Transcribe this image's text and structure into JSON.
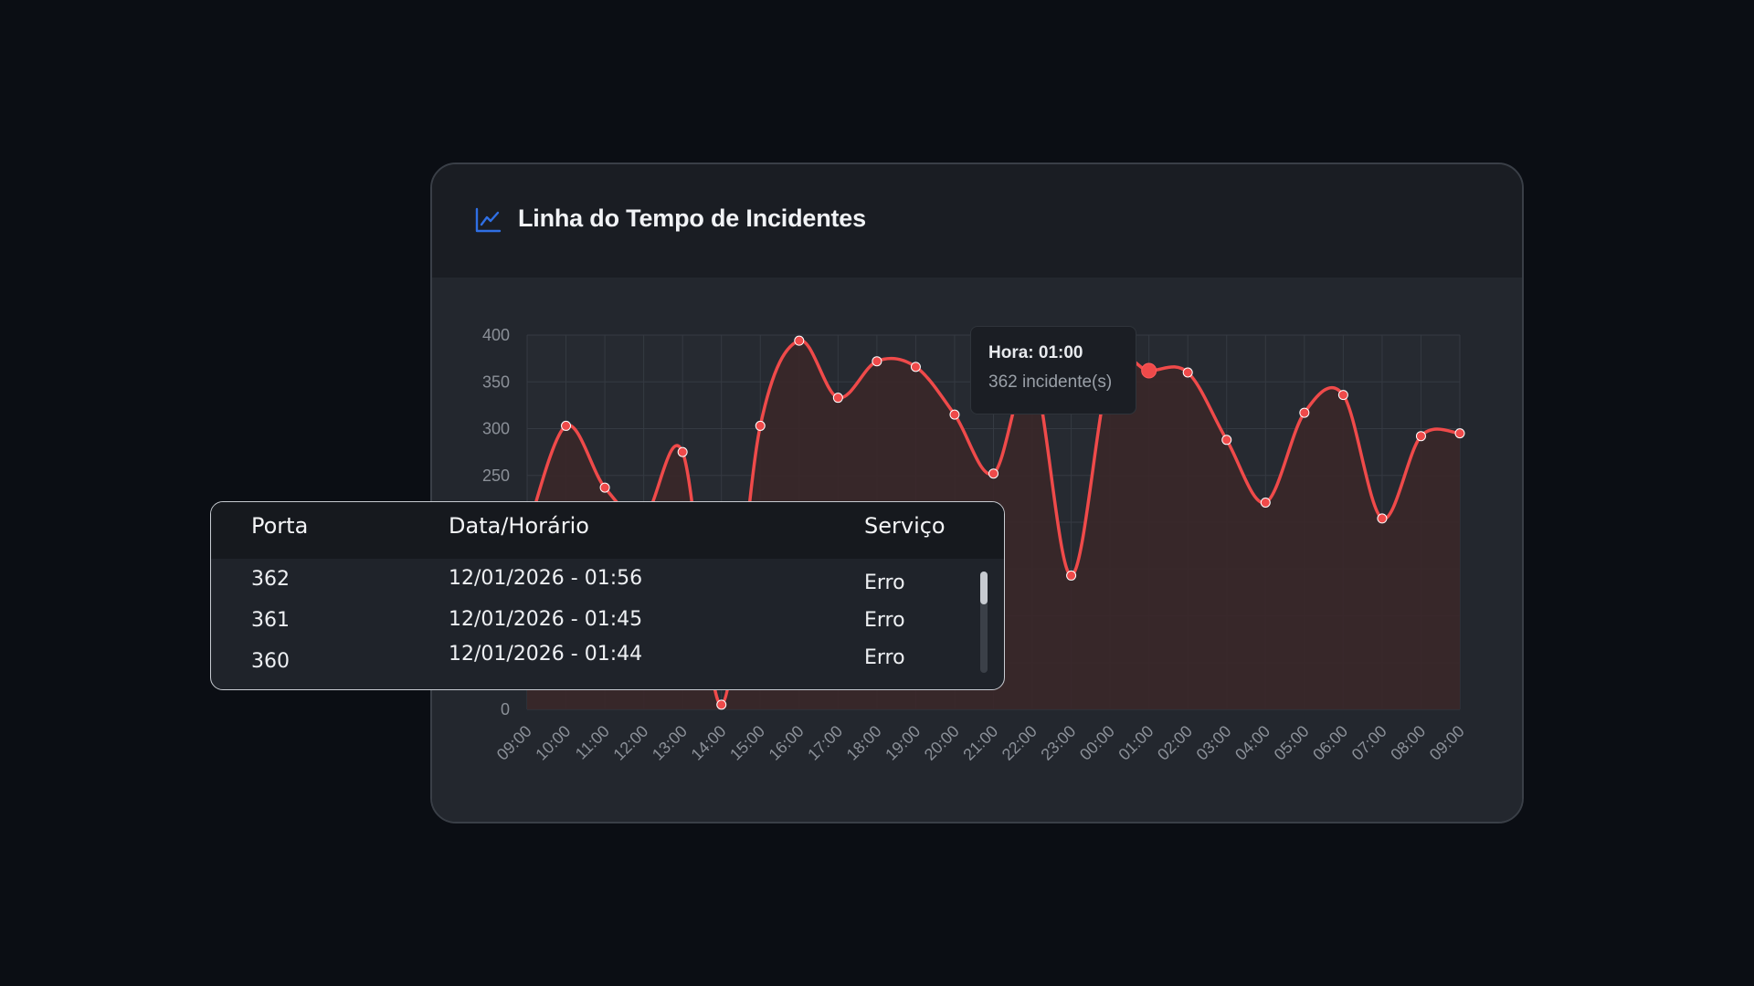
{
  "card": {
    "title": "Linha do Tempo de Incidentes",
    "icon": "line-chart-icon",
    "accent": "#2f6fe4"
  },
  "tooltip": {
    "title": "Hora: 01:00",
    "value": "362 incidente(s)"
  },
  "table": {
    "headers": {
      "port": "Porta",
      "datetime": "Data/Horário",
      "service": "Serviço"
    },
    "rows": [
      {
        "port": "362",
        "datetime": "12/01/2026 - 01:56",
        "service": "Erro"
      },
      {
        "port": "361",
        "datetime": "12/01/2026 - 01:45",
        "service": "Erro"
      },
      {
        "port": "360",
        "datetime": "12/01/2026 - 01:44",
        "service": "Erro"
      }
    ]
  },
  "chart_data": {
    "type": "area",
    "title": "Linha do Tempo de Incidentes",
    "xlabel": "",
    "ylabel": "",
    "ylim": [
      0,
      400
    ],
    "yticks": [
      0,
      50,
      100,
      150,
      200,
      250,
      300,
      350,
      400
    ],
    "ytick_labels_visible": [
      "400",
      "350",
      "300",
      "250",
      "0"
    ],
    "grid": true,
    "line_color": "#ef4a4a",
    "fill_color": "#3a2729",
    "categories": [
      "09:00",
      "10:00",
      "11:00",
      "12:00",
      "13:00",
      "14:00",
      "15:00",
      "16:00",
      "17:00",
      "18:00",
      "19:00",
      "20:00",
      "21:00",
      "22:00",
      "23:00",
      "00:00",
      "01:00",
      "02:00",
      "03:00",
      "04:00",
      "05:00",
      "06:00",
      "07:00",
      "08:00",
      "09:00"
    ],
    "series": [
      {
        "values": [
          190,
          303,
          237,
          205,
          275,
          5,
          303,
          394,
          333,
          372,
          366,
          315,
          252,
          362,
          143,
          362,
          362,
          360,
          288,
          221,
          317,
          336,
          204,
          292,
          295
        ]
      }
    ],
    "highlight_index": 16
  }
}
